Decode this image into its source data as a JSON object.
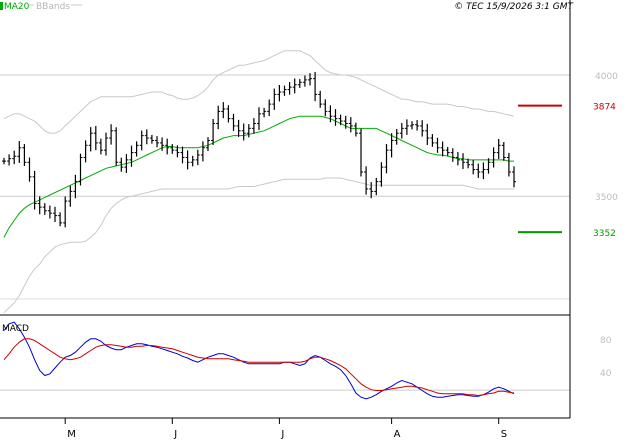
{
  "legend": {
    "ma20_label": "MA20",
    "bbands_label": "BBands",
    "copyright": "© TEC 15/9/2026 3:1 GMT"
  },
  "colors": {
    "ma20": "#00aa00",
    "bbands": "#c8c8c8",
    "price_bars": "#000000",
    "resistance": "#cc0000",
    "support": "#009900",
    "macd_line": "#0000cc",
    "signal_line": "#cc0000",
    "grid": "#cccccc"
  },
  "chart_data": [
    {
      "type": "ohlc",
      "ylim": [
        3010,
        4260
      ],
      "y_ticks": [
        {
          "value": 3500,
          "label": "3500"
        },
        {
          "value": 4000,
          "label": "4000"
        }
      ],
      "x_month_labels": [
        {
          "label": "M",
          "index": 12
        },
        {
          "label": "J",
          "index": 33
        },
        {
          "label": "J",
          "index": 54
        },
        {
          "label": "A",
          "index": 76
        },
        {
          "label": "S",
          "index": 97
        }
      ],
      "levels": [
        {
          "name": "resistance",
          "value": 3874,
          "label": "3874"
        },
        {
          "name": "support",
          "value": 3352,
          "label": "3352"
        }
      ],
      "close": [
        3645,
        3655,
        3665,
        3700,
        3640,
        3580,
        3470,
        3455,
        3440,
        3430,
        3420,
        3390,
        3480,
        3520,
        3560,
        3660,
        3710,
        3760,
        3720,
        3690,
        3740,
        3770,
        3640,
        3620,
        3650,
        3680,
        3710,
        3750,
        3740,
        3730,
        3720,
        3710,
        3700,
        3690,
        3680,
        3660,
        3640,
        3650,
        3670,
        3700,
        3730,
        3800,
        3850,
        3860,
        3820,
        3790,
        3770,
        3760,
        3780,
        3800,
        3840,
        3850,
        3880,
        3920,
        3930,
        3940,
        3950,
        3960,
        3970,
        3980,
        3985,
        3920,
        3880,
        3850,
        3830,
        3820,
        3810,
        3800,
        3790,
        3760,
        3600,
        3530,
        3520,
        3560,
        3620,
        3690,
        3730,
        3760,
        3780,
        3790,
        3795,
        3790,
        3770,
        3740,
        3720,
        3700,
        3690,
        3680,
        3660,
        3650,
        3640,
        3630,
        3610,
        3600,
        3610,
        3640,
        3680,
        3710,
        3660,
        3600,
        3560
      ],
      "ma20": [
        3330,
        3370,
        3400,
        3430,
        3450,
        3465,
        3475,
        3485,
        3495,
        3505,
        3515,
        3525,
        3535,
        3545,
        3555,
        3565,
        3575,
        3585,
        3595,
        3605,
        3615,
        3620,
        3625,
        3630,
        3635,
        3640,
        3650,
        3660,
        3670,
        3680,
        3690,
        3700,
        3705,
        3705,
        3700,
        3700,
        3700,
        3700,
        3700,
        3705,
        3710,
        3720,
        3730,
        3740,
        3745,
        3750,
        3750,
        3750,
        3755,
        3760,
        3765,
        3770,
        3780,
        3790,
        3800,
        3810,
        3820,
        3825,
        3830,
        3830,
        3830,
        3830,
        3830,
        3825,
        3820,
        3810,
        3800,
        3790,
        3780,
        3780,
        3780,
        3780,
        3780,
        3780,
        3770,
        3760,
        3750,
        3740,
        3730,
        3720,
        3710,
        3700,
        3690,
        3680,
        3675,
        3670,
        3670,
        3665,
        3660,
        3655,
        3655,
        3650,
        3650,
        3650,
        3650,
        3650,
        3650,
        3650,
        3650,
        3645,
        3645
      ],
      "bb_upper": [
        3820,
        3830,
        3840,
        3840,
        3830,
        3820,
        3810,
        3790,
        3770,
        3760,
        3760,
        3770,
        3790,
        3810,
        3830,
        3850,
        3870,
        3890,
        3900,
        3910,
        3910,
        3910,
        3910,
        3910,
        3910,
        3910,
        3915,
        3920,
        3925,
        3930,
        3930,
        3930,
        3920,
        3915,
        3905,
        3900,
        3900,
        3905,
        3915,
        3930,
        3950,
        3980,
        4000,
        4010,
        4020,
        4030,
        4040,
        4040,
        4045,
        4050,
        4055,
        4060,
        4070,
        4080,
        4090,
        4100,
        4100,
        4100,
        4100,
        4090,
        4080,
        4060,
        4040,
        4020,
        4010,
        4005,
        4000,
        4000,
        3995,
        3990,
        3980,
        3970,
        3960,
        3950,
        3940,
        3930,
        3920,
        3910,
        3900,
        3900,
        3895,
        3890,
        3890,
        3885,
        3880,
        3880,
        3880,
        3880,
        3875,
        3870,
        3870,
        3865,
        3860,
        3860,
        3855,
        3850,
        3850,
        3845,
        3840,
        3835,
        3830
      ],
      "bb_lower": [
        3020,
        3040,
        3060,
        3090,
        3130,
        3170,
        3200,
        3220,
        3250,
        3270,
        3290,
        3300,
        3305,
        3310,
        3310,
        3310,
        3315,
        3330,
        3350,
        3380,
        3420,
        3450,
        3470,
        3485,
        3495,
        3500,
        3505,
        3510,
        3515,
        3520,
        3525,
        3530,
        3530,
        3530,
        3530,
        3530,
        3530,
        3530,
        3530,
        3530,
        3530,
        3530,
        3530,
        3530,
        3530,
        3535,
        3540,
        3540,
        3540,
        3540,
        3545,
        3550,
        3555,
        3560,
        3565,
        3570,
        3570,
        3570,
        3570,
        3570,
        3570,
        3570,
        3570,
        3575,
        3575,
        3575,
        3575,
        3570,
        3565,
        3560,
        3555,
        3550,
        3545,
        3545,
        3545,
        3545,
        3545,
        3545,
        3545,
        3545,
        3545,
        3545,
        3545,
        3545,
        3545,
        3545,
        3545,
        3545,
        3545,
        3545,
        3545,
        3540,
        3535,
        3530,
        3530,
        3530,
        3530,
        3530,
        3530,
        3530,
        3530
      ]
    },
    {
      "type": "line",
      "title": "MACD",
      "ylim": [
        -15,
        105
      ],
      "y_ticks": [
        {
          "value": 40,
          "label": "40"
        },
        {
          "value": 80,
          "label": "80"
        }
      ],
      "series": [
        {
          "values": [
            90,
            98,
            100,
            92,
            82,
            70,
            55,
            42,
            36,
            38,
            45,
            52,
            58,
            60,
            64,
            70,
            76,
            80,
            80,
            77,
            72,
            69,
            67,
            67,
            70,
            72,
            74,
            74,
            73,
            71,
            70,
            68,
            66,
            64,
            62,
            59,
            57,
            54,
            52,
            55,
            58,
            60,
            62,
            62,
            60,
            58,
            55,
            52,
            50,
            50,
            50,
            50,
            50,
            50,
            50,
            52,
            52,
            50,
            48,
            50,
            57,
            60,
            58,
            54,
            50,
            47,
            43,
            36,
            26,
            15,
            10,
            8,
            10,
            13,
            17,
            20,
            23,
            27,
            30,
            28,
            26,
            22,
            18,
            14,
            11,
            10,
            10,
            11,
            12,
            13,
            13,
            12,
            11,
            11,
            13,
            16,
            20,
            22,
            20,
            17,
            14
          ]
        },
        {
          "values": [
            55,
            62,
            70,
            76,
            80,
            80,
            78,
            74,
            70,
            66,
            62,
            58,
            56,
            55,
            56,
            58,
            62,
            66,
            70,
            72,
            73,
            73,
            72,
            71,
            70,
            70,
            71,
            71,
            72,
            72,
            71,
            70,
            69,
            68,
            66,
            64,
            62,
            60,
            58,
            57,
            56,
            56,
            56,
            56,
            56,
            55,
            54,
            53,
            52,
            52,
            52,
            52,
            52,
            52,
            52,
            52,
            52,
            52,
            52,
            53,
            56,
            58,
            58,
            56,
            54,
            51,
            48,
            44,
            38,
            32,
            26,
            22,
            19,
            18,
            18,
            19,
            20,
            21,
            22,
            23,
            23,
            22,
            21,
            19,
            17,
            15,
            14,
            14,
            14,
            14,
            14,
            13,
            13,
            12,
            13,
            14,
            15,
            17,
            17,
            16,
            15
          ]
        }
      ]
    }
  ]
}
